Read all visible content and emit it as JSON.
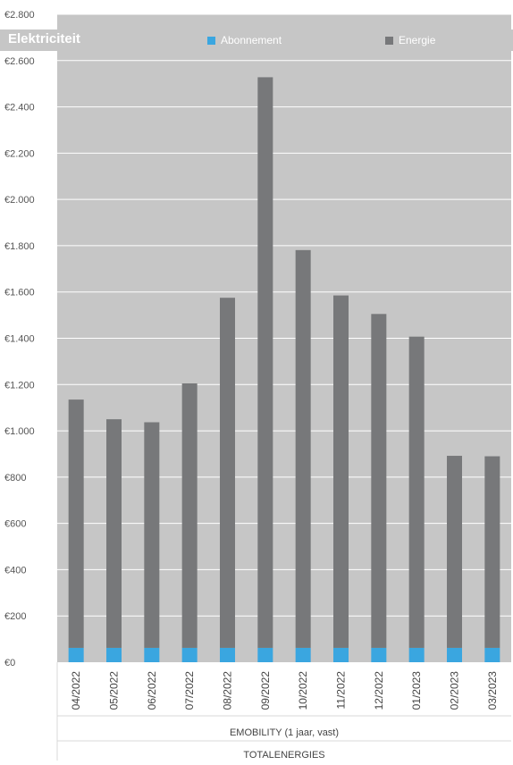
{
  "chart_data": {
    "type": "bar",
    "stacked": true,
    "title": "Elektriciteit",
    "categories": [
      "04/2022",
      "05/2022",
      "06/2022",
      "07/2022",
      "08/2022",
      "09/2022",
      "10/2022",
      "11/2022",
      "12/2022",
      "01/2023",
      "02/2023",
      "03/2023"
    ],
    "group_labels": [
      "EMOBILITY (1 jaar, vast)",
      "TOTALENERGIES"
    ],
    "series": [
      {
        "name": "Abonnement",
        "color": "#3aa6e0",
        "values": [
          62,
          62,
          62,
          62,
          62,
          62,
          62,
          62,
          62,
          62,
          62,
          62
        ]
      },
      {
        "name": "Energie",
        "color": "#77787a",
        "values": [
          1073,
          988,
          975,
          1143,
          1513,
          2466,
          1719,
          1523,
          1443,
          1345,
          830,
          828
        ]
      }
    ],
    "ylim": [
      0,
      2800
    ],
    "yticks": [
      0,
      200,
      400,
      600,
      800,
      1000,
      1200,
      1400,
      1600,
      1800,
      2000,
      2200,
      2400,
      2600,
      2800
    ],
    "ytick_labels": [
      "€0",
      "€200",
      "€400",
      "€600",
      "€800",
      "€1.000",
      "€1.200",
      "€1.400",
      "€1.600",
      "€1.800",
      "€2.000",
      "€2.200",
      "€2.400",
      "€2.600",
      "€2.800"
    ],
    "grid": true,
    "legend_position": "top",
    "background_color": "#c6c6c6",
    "grid_color": "#ffffff"
  }
}
